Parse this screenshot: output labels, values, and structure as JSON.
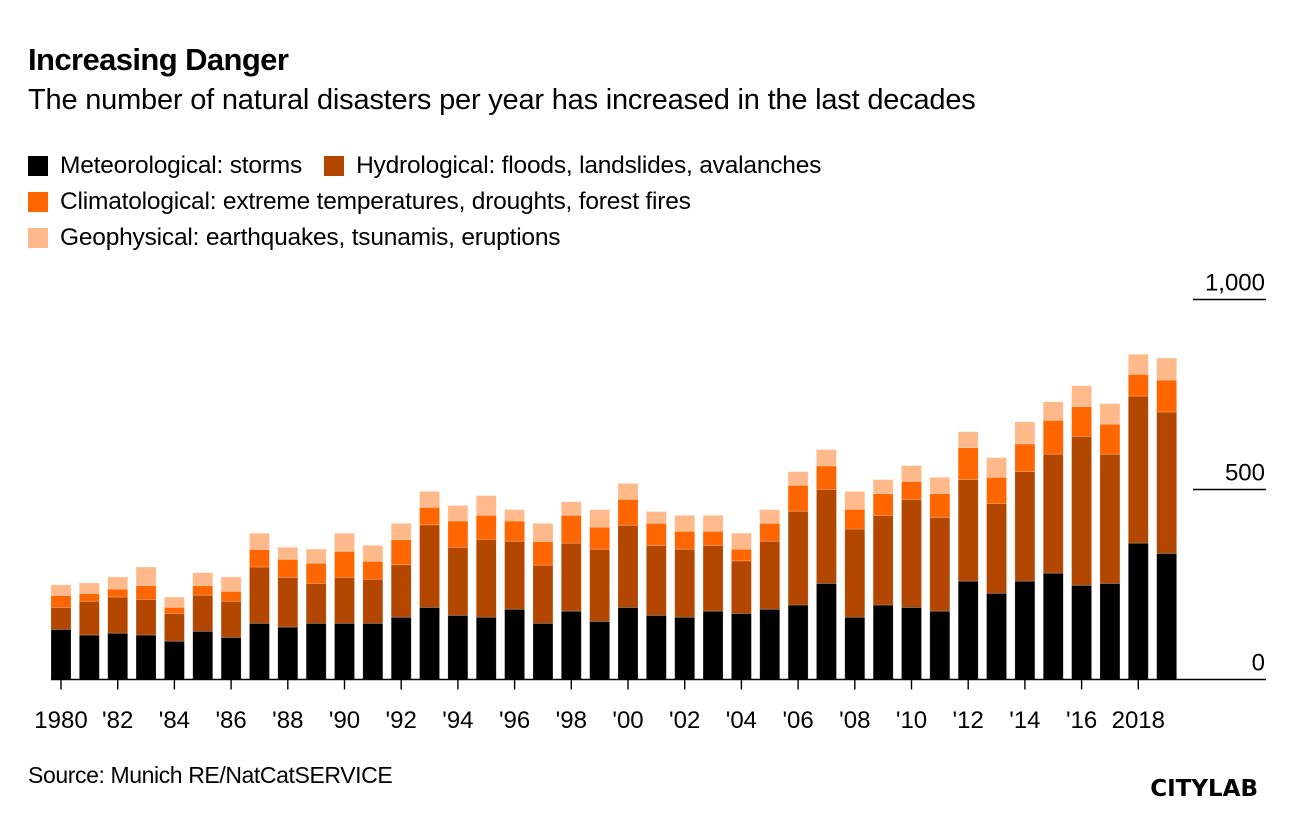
{
  "header": {
    "title": "Increasing Danger",
    "subtitle": "The number of natural disasters per year has increased in the last decades"
  },
  "legend": {
    "rows": [
      [
        {
          "label": "Meteorological: storms",
          "color": "#000000"
        },
        {
          "label": "Hydrological: floods, landslides, avalanches",
          "color": "#B34700"
        }
      ],
      [
        {
          "label": "Climatological: extreme temperatures, droughts, forest fires",
          "color": "#FF6600"
        }
      ],
      [
        {
          "label": "Geophysical: earthquakes, tsunamis, eruptions",
          "color": "#FFB98A"
        }
      ]
    ]
  },
  "footer": {
    "source": "Source: Munich RE/NatCatSERVICE",
    "logo": "CITYLAB"
  },
  "chart_data": {
    "type": "bar",
    "stacked": true,
    "title": "Increasing Danger",
    "subtitle": "The number of natural disasters per year has increased in the last decades",
    "xlabel": "",
    "ylabel": "",
    "ylim": [
      0,
      1000
    ],
    "yticks": [
      0,
      500,
      1000
    ],
    "ytick_labels": [
      "0",
      "500",
      "1,000"
    ],
    "y_axis_position": "right",
    "grid": false,
    "legend_position": "top-left",
    "categories": [
      1980,
      1981,
      1982,
      1983,
      1984,
      1985,
      1986,
      1987,
      1988,
      1989,
      1990,
      1991,
      1992,
      1993,
      1994,
      1995,
      1996,
      1997,
      1998,
      1999,
      2000,
      2001,
      2002,
      2003,
      2004,
      2005,
      2006,
      2007,
      2008,
      2009,
      2010,
      2011,
      2012,
      2013,
      2014,
      2015,
      2016,
      2017,
      2018,
      2019
    ],
    "xtick_years": [
      1980,
      1982,
      1984,
      1986,
      1988,
      1990,
      1992,
      1994,
      1996,
      1998,
      2000,
      2002,
      2004,
      2006,
      2008,
      2010,
      2012,
      2014,
      2016,
      2018
    ],
    "xtick_labels": [
      "1980",
      "'82",
      "'84",
      "'86",
      "'88",
      "'90",
      "'92",
      "'94",
      "'96",
      "'98",
      "'00",
      "'02",
      "'04",
      "'06",
      "'08",
      "'10",
      "'12",
      "'14",
      "'16",
      "2018"
    ],
    "series": [
      {
        "name": "Meteorological: storms",
        "color": "#000000",
        "values": [
          132,
          117,
          122,
          117,
          101,
          127,
          111,
          148,
          138,
          148,
          148,
          148,
          164,
          190,
          169,
          164,
          185,
          148,
          180,
          153,
          190,
          169,
          164,
          180,
          174,
          185,
          196,
          253,
          164,
          196,
          190,
          180,
          259,
          227,
          259,
          280,
          248,
          253,
          359,
          332
        ]
      },
      {
        "name": "Hydrological: floods, landslides, avalanches",
        "color": "#B34700",
        "values": [
          58,
          89,
          95,
          94,
          73,
          95,
          95,
          148,
          131,
          105,
          121,
          116,
          138,
          217,
          179,
          205,
          179,
          153,
          179,
          190,
          216,
          184,
          179,
          173,
          138,
          179,
          247,
          247,
          232,
          236,
          284,
          247,
          267,
          236,
          288,
          313,
          392,
          340,
          387,
          372
        ]
      },
      {
        "name": "Climatological: extreme temperatures, droughts, forest fires",
        "color": "#FF6600",
        "values": [
          31,
          20,
          21,
          36,
          16,
          25,
          26,
          46,
          47,
          53,
          68,
          47,
          66,
          46,
          69,
          63,
          53,
          62,
          73,
          58,
          68,
          58,
          47,
          37,
          31,
          47,
          68,
          62,
          52,
          57,
          47,
          62,
          84,
          69,
          73,
          89,
          78,
          79,
          57,
          84
        ]
      },
      {
        "name": "Geophysical: earthquakes, tsunamis, eruptions",
        "color": "#FFB98A",
        "values": [
          28,
          28,
          32,
          49,
          27,
          34,
          38,
          43,
          32,
          37,
          48,
          42,
          43,
          42,
          41,
          52,
          30,
          48,
          36,
          46,
          42,
          31,
          42,
          42,
          42,
          36,
          36,
          43,
          47,
          37,
          42,
          43,
          42,
          52,
          58,
          49,
          55,
          54,
          53,
          58
        ]
      }
    ]
  }
}
